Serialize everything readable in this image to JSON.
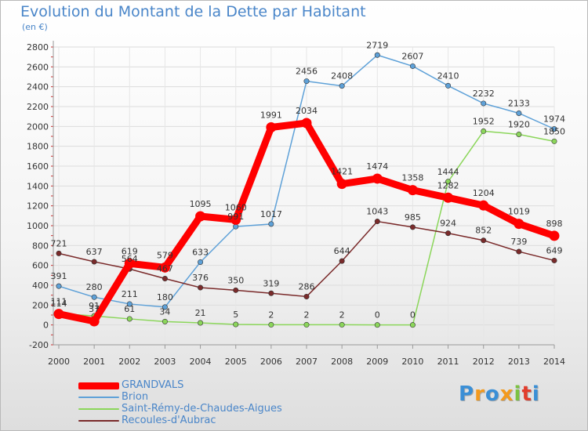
{
  "title": "Evolution du Montant de la Dette par Habitant",
  "unit": "(en €)",
  "logo": {
    "text": "Proxiti",
    "colors": [
      "#3b8fd6",
      "#f39a1e",
      "#3b8fd6",
      "#f39a1e",
      "#7cc242",
      "#e23c2c",
      "#3b8fd6"
    ]
  },
  "chart_data": {
    "type": "line",
    "x": [
      "2000",
      "2001",
      "2002",
      "2003",
      "2004",
      "2005",
      "2006",
      "2007",
      "2008",
      "2009",
      "2010",
      "2011",
      "2012",
      "2013",
      "2014"
    ],
    "ylim": [
      -200,
      2800
    ],
    "yticks": [
      -200,
      0,
      200,
      400,
      600,
      800,
      1000,
      1200,
      1400,
      1600,
      1800,
      2000,
      2200,
      2400,
      2600,
      2800
    ],
    "grid": true,
    "legend_position": "bottom-left",
    "series": [
      {
        "name": "GRANDVALS",
        "color": "#ff0000",
        "width": 9,
        "values": [
          111,
          37,
          619,
          579,
          1095,
          1060,
          1991,
          2034,
          1421,
          1474,
          1358,
          1282,
          1204,
          1019,
          898
        ]
      },
      {
        "name": "Brion",
        "color": "#5ea1d8",
        "width": 1.5,
        "values": [
          391,
          280,
          211,
          180,
          633,
          991,
          1017,
          2456,
          2408,
          2719,
          2607,
          2410,
          2232,
          2133,
          1974
        ]
      },
      {
        "name": "Saint-Rémy-de-Chaudes-Aigues",
        "color": "#8bd65a",
        "width": 1.5,
        "values": [
          114,
          91,
          61,
          34,
          21,
          5,
          2,
          2,
          2,
          0,
          0,
          1444,
          1952,
          1920,
          1850
        ]
      },
      {
        "name": "Recoules-d'Aubrac",
        "color": "#7a2a2a",
        "width": 1.5,
        "values": [
          721,
          637,
          564,
          467,
          376,
          350,
          319,
          286,
          644,
          1043,
          985,
          924,
          852,
          739,
          649
        ]
      }
    ]
  }
}
